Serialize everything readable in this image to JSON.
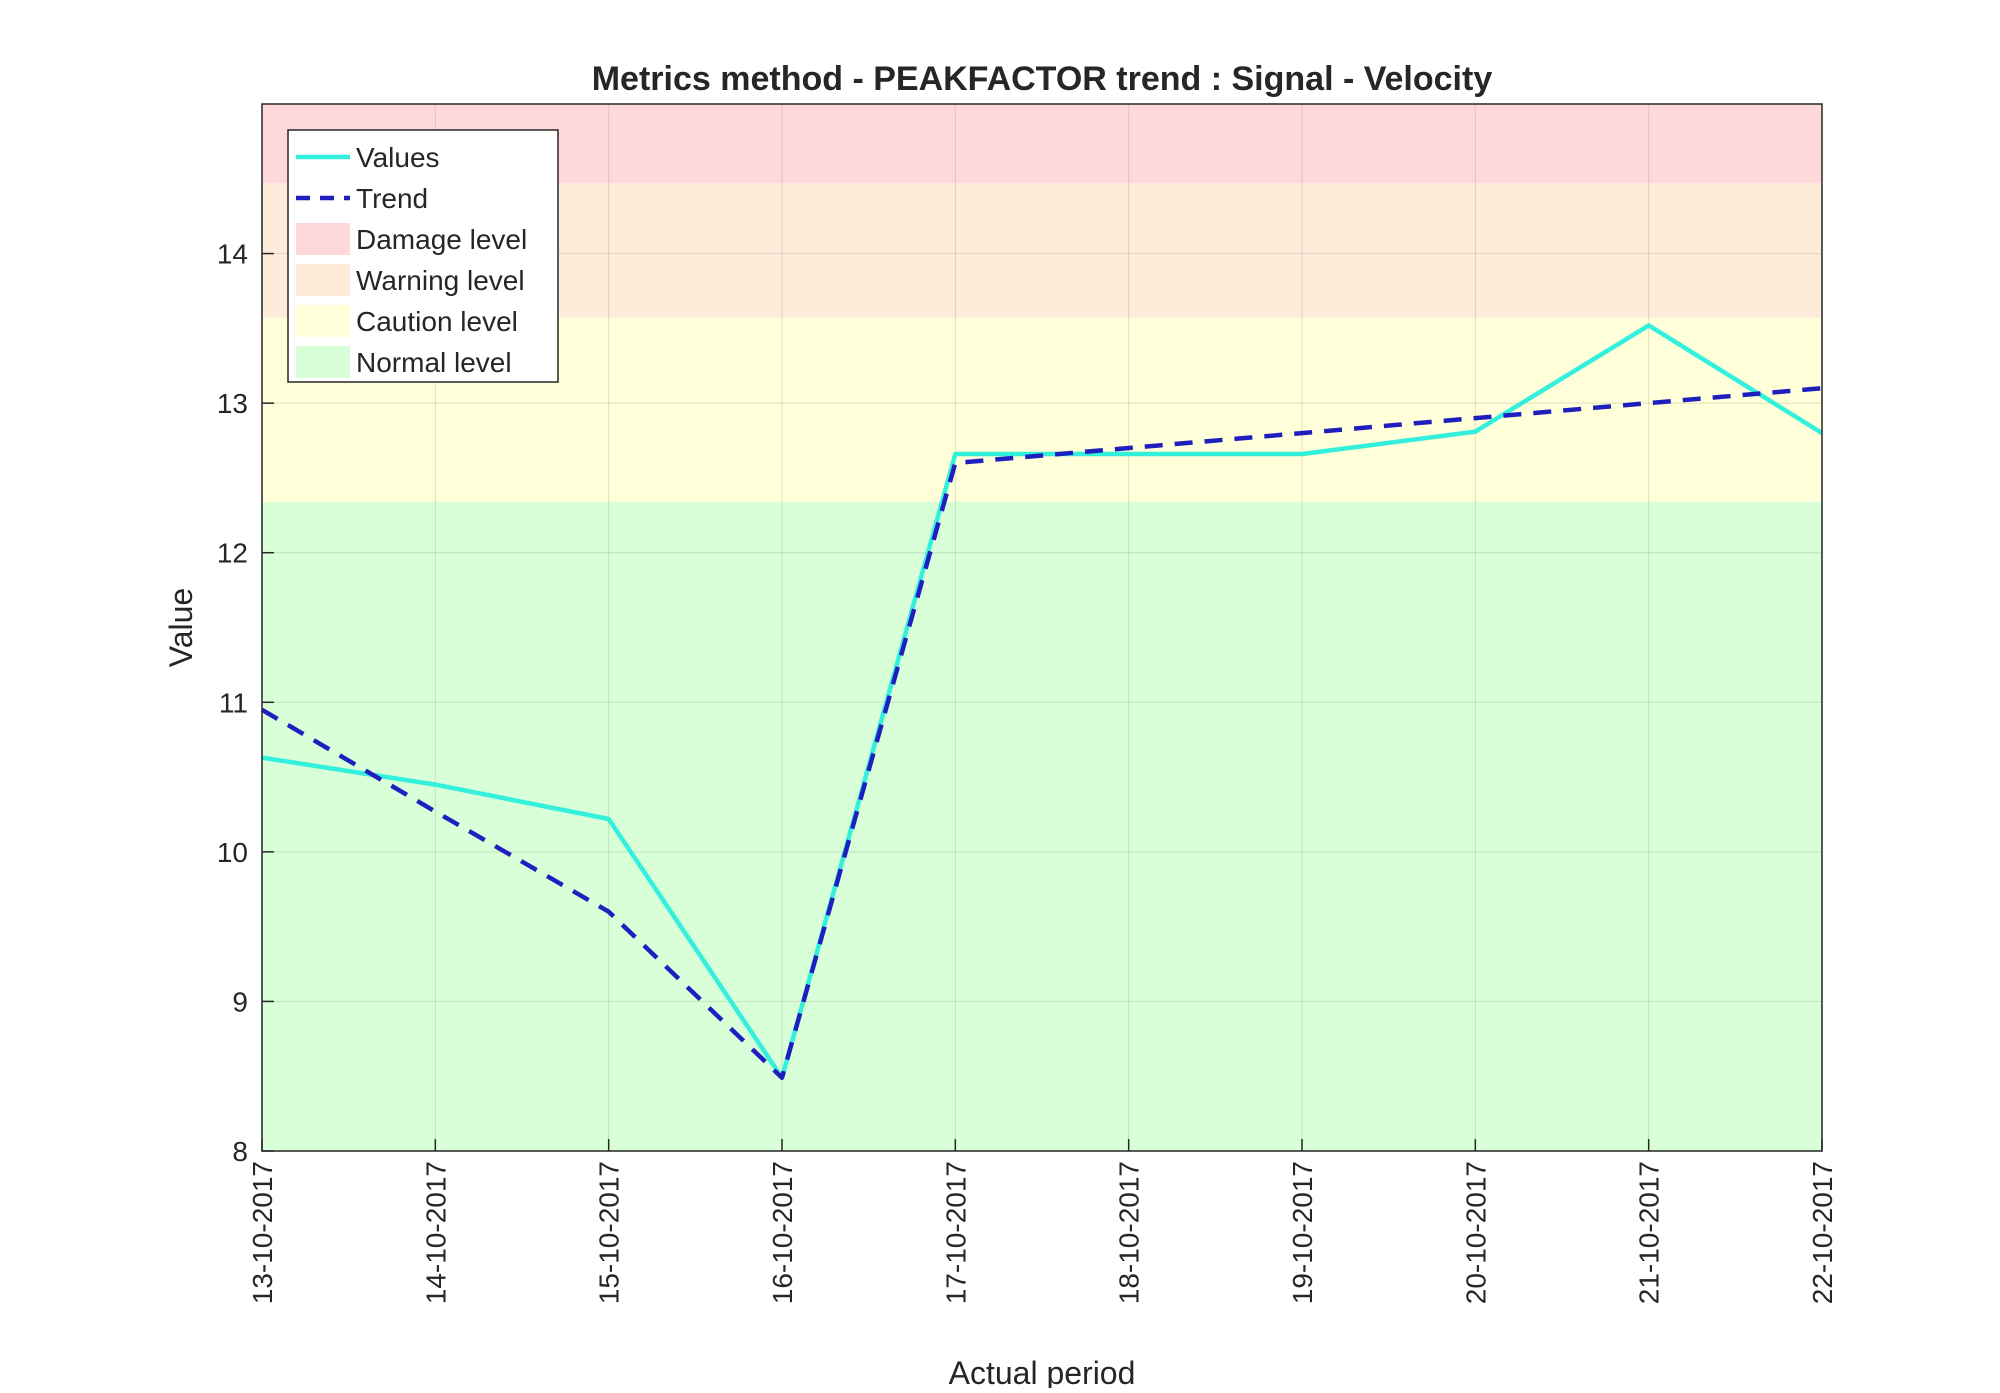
{
  "chart_data": {
    "type": "line",
    "title": "Metrics method - PEAKFACTOR trend : Signal - Velocity",
    "xlabel": "Actual period",
    "ylabel": "Value",
    "categories": [
      "13-10-2017",
      "14-10-2017",
      "15-10-2017",
      "16-10-2017",
      "17-10-2017",
      "18-10-2017",
      "19-10-2017",
      "20-10-2017",
      "21-10-2017",
      "22-10-2017"
    ],
    "ylim": [
      8,
      15
    ],
    "yticks": [
      8,
      9,
      10,
      11,
      12,
      13,
      14
    ],
    "grid": true,
    "legend_position": "top-left",
    "series": [
      {
        "name": "Values",
        "style": "solid",
        "color": "#33f0dc",
        "values": [
          10.63,
          10.45,
          10.22,
          8.49,
          12.66,
          12.66,
          12.66,
          12.81,
          13.52,
          12.8
        ]
      },
      {
        "name": "Trend",
        "style": "dashed",
        "color": "#1f1fbf",
        "values": [
          10.95,
          10.27,
          9.6,
          8.49,
          12.6,
          12.7,
          12.8,
          12.9,
          13.0,
          13.1
        ]
      }
    ],
    "bands": [
      {
        "name": "Damage level",
        "from": 14.47,
        "to": 15.0,
        "color": "#ffd9d9"
      },
      {
        "name": "Warning level",
        "from": 13.57,
        "to": 14.47,
        "color": "#ffebd9"
      },
      {
        "name": "Caution level",
        "from": 12.34,
        "to": 13.57,
        "color": "#ffffd9"
      },
      {
        "name": "Normal level",
        "from": 8.0,
        "to": 12.34,
        "color": "#d9ffd9"
      }
    ]
  }
}
